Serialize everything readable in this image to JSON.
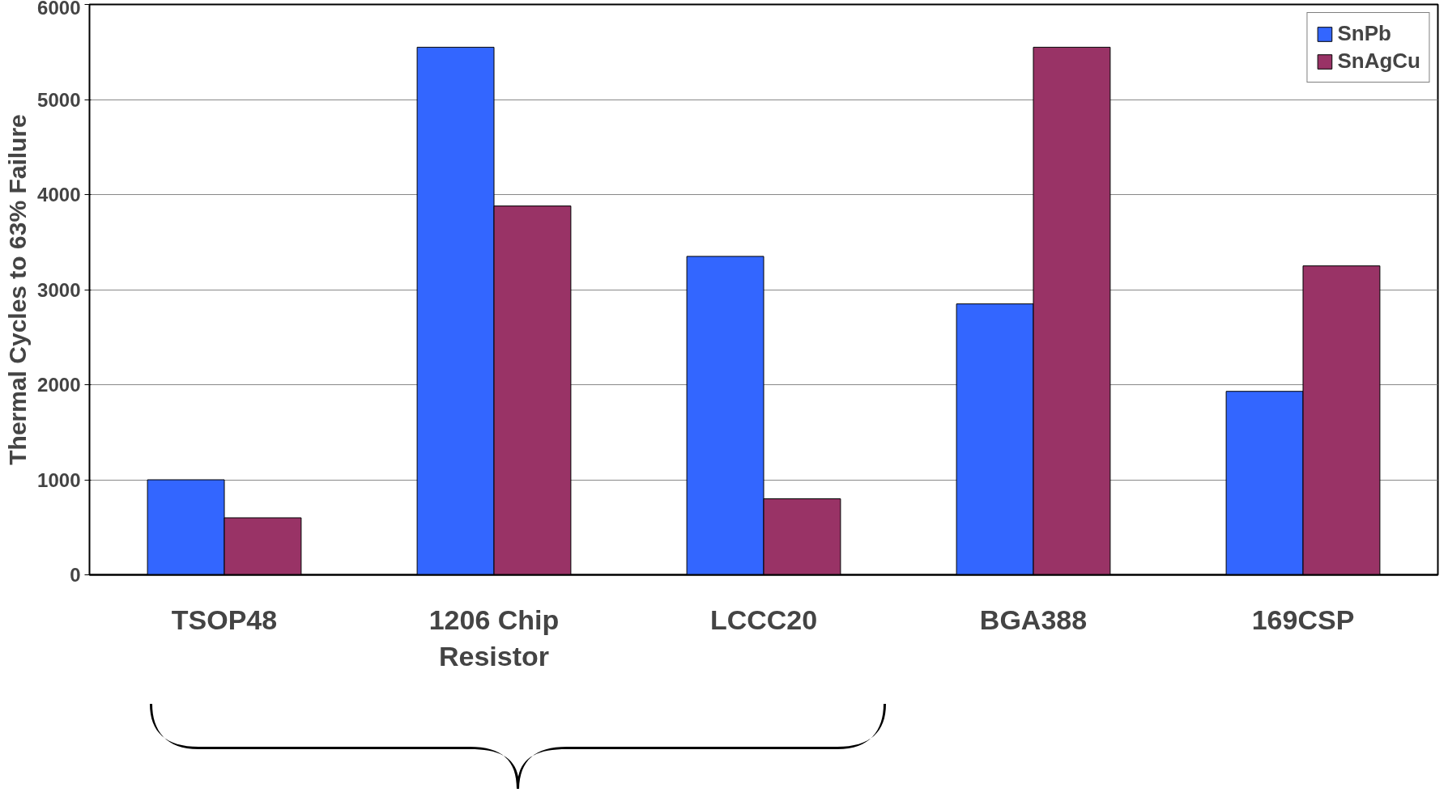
{
  "chart_data": {
    "type": "bar",
    "ylabel": "Thermal Cycles to 63% Failure",
    "categories": [
      "TSOP48",
      "1206 Chip\nResistor",
      "LCCC20",
      "BGA388",
      "169CSP"
    ],
    "series": [
      {
        "name": "SnPb",
        "color": "#3366ff",
        "values": [
          1000,
          5550,
          3350,
          2850,
          1930
        ]
      },
      {
        "name": "SnAgCu",
        "color": "#993366",
        "values": [
          600,
          3880,
          800,
          5550,
          3250
        ]
      }
    ],
    "ylim": [
      0,
      6000
    ],
    "yticks": [
      0,
      1000,
      2000,
      3000,
      4000,
      5000,
      6000
    ],
    "grid": "y",
    "legend": "top right"
  }
}
